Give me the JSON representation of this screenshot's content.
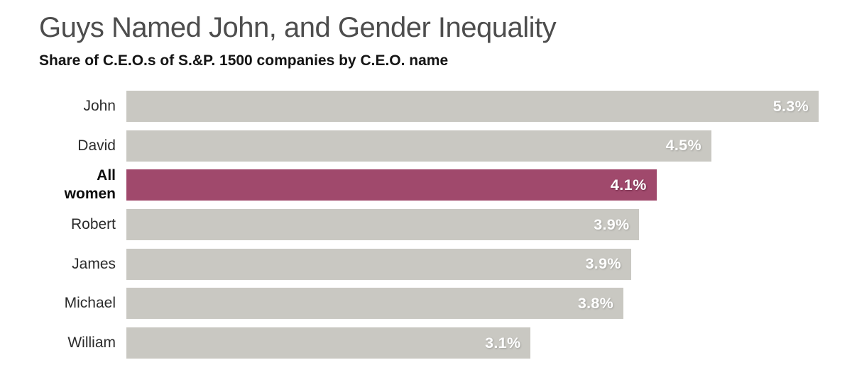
{
  "header": {
    "title": "Guys Named John, and Gender Inequality",
    "subtitle": "Share of C.E.O.s of S.&P. 1500 companies by C.E.O. name"
  },
  "colors": {
    "bar_default": "#c9c8c2",
    "bar_highlight": "#a0496c",
    "value_text": "#ffffff",
    "title_text": "#4d4d4d",
    "subtitle_text": "#141414",
    "label_text": "#2b2b2b"
  },
  "chart_data": {
    "type": "bar",
    "orientation": "horizontal",
    "title": "Guys Named John, and Gender Inequality",
    "subtitle": "Share of C.E.O.s of S.&P. 1500 companies by C.E.O. name",
    "categories": [
      "John",
      "David",
      "All women",
      "Robert",
      "James",
      "Michael",
      "William"
    ],
    "values": [
      5.3,
      4.5,
      4.1,
      3.9,
      3.9,
      3.8,
      3.1
    ],
    "value_labels": [
      "5.3%",
      "4.5%",
      "4.1%",
      "3.9%",
      "3.9%",
      "3.8%",
      "3.1%"
    ],
    "unit": "%",
    "xlim": [
      0,
      5.3
    ],
    "grid": false,
    "legend": false,
    "highlighted_category": "All women",
    "value_label_position": "inside-end",
    "bars": [
      {
        "label": "John",
        "value": 5.3,
        "value_label": "5.3%",
        "length_pct": 100,
        "highlighted": false
      },
      {
        "label": "David",
        "value": 4.5,
        "value_label": "4.5%",
        "length_pct": 84.5,
        "highlighted": false
      },
      {
        "label": "All\nwomen",
        "value": 4.1,
        "value_label": "4.1%",
        "length_pct": 76.6,
        "highlighted": true
      },
      {
        "label": "Robert",
        "value": 3.9,
        "value_label": "3.9%",
        "length_pct": 74.1,
        "highlighted": false
      },
      {
        "label": "James",
        "value": 3.9,
        "value_label": "3.9%",
        "length_pct": 72.9,
        "highlighted": false
      },
      {
        "label": "Michael",
        "value": 3.8,
        "value_label": "3.8%",
        "length_pct": 71.8,
        "highlighted": false
      },
      {
        "label": "William",
        "value": 3.1,
        "value_label": "3.1%",
        "length_pct": 58.4,
        "highlighted": false
      }
    ]
  }
}
